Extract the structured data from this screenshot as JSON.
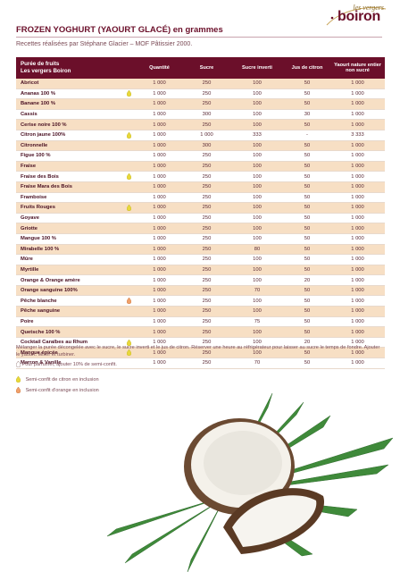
{
  "brand": {
    "top_text": "les vergers",
    "name": "boiron"
  },
  "title": "FROZEN YOGHURT (YAOURT GLACÉ) en grammes",
  "subtitle": "Recettes réalisées par Stéphane Glacier – MOF Pâtissier 2000.",
  "table": {
    "header_fruit_line1": "Purée de fruits",
    "header_fruit_line2": "Les vergers Boiron",
    "columns": [
      "Quantité",
      "Sucre",
      "Sucre inverti",
      "Jus de citron",
      "Yaourt nature entier non sucré"
    ],
    "rows": [
      {
        "fruit": "Abricot",
        "mark": "",
        "values": [
          "1 000",
          "250",
          "100",
          "50",
          "1 000"
        ]
      },
      {
        "fruit": "Ananas 100 %",
        "mark": "lemon",
        "values": [
          "1 000",
          "250",
          "100",
          "50",
          "1 000"
        ]
      },
      {
        "fruit": "Banane 100 %",
        "mark": "",
        "values": [
          "1 000",
          "250",
          "100",
          "50",
          "1 000"
        ]
      },
      {
        "fruit": "Cassis",
        "mark": "",
        "values": [
          "1 000",
          "300",
          "100",
          "30",
          "1 000"
        ]
      },
      {
        "fruit": "Cerise noire 100 %",
        "mark": "",
        "values": [
          "1 000",
          "250",
          "100",
          "50",
          "1 000"
        ]
      },
      {
        "fruit": "Citron jaune 100%",
        "mark": "lemon",
        "values": [
          "1 000",
          "1 000",
          "333",
          "-",
          "3 333"
        ]
      },
      {
        "fruit": "Citronnelle",
        "mark": "",
        "values": [
          "1 000",
          "300",
          "100",
          "50",
          "1 000"
        ]
      },
      {
        "fruit": "Figue 100 %",
        "mark": "",
        "values": [
          "1 000",
          "250",
          "100",
          "50",
          "1 000"
        ]
      },
      {
        "fruit": "Fraise",
        "mark": "",
        "values": [
          "1 000",
          "250",
          "100",
          "50",
          "1 000"
        ]
      },
      {
        "fruit": "Fraise des Bois",
        "mark": "lemon",
        "values": [
          "1 000",
          "250",
          "100",
          "50",
          "1 000"
        ]
      },
      {
        "fruit": "Fraise Mara des Bois",
        "mark": "",
        "values": [
          "1 000",
          "250",
          "100",
          "50",
          "1 000"
        ]
      },
      {
        "fruit": "Framboise",
        "mark": "",
        "values": [
          "1 000",
          "250",
          "100",
          "50",
          "1 000"
        ]
      },
      {
        "fruit": "Fruits Rouges",
        "mark": "lemon",
        "values": [
          "1 000",
          "250",
          "100",
          "50",
          "1 000"
        ]
      },
      {
        "fruit": "Goyave",
        "mark": "",
        "values": [
          "1 000",
          "250",
          "100",
          "50",
          "1 000"
        ]
      },
      {
        "fruit": "Griotte",
        "mark": "",
        "values": [
          "1 000",
          "250",
          "100",
          "50",
          "1 000"
        ]
      },
      {
        "fruit": "Mangue 100 %",
        "mark": "",
        "values": [
          "1 000",
          "250",
          "100",
          "50",
          "1 000"
        ]
      },
      {
        "fruit": "Mirabelle 100 %",
        "mark": "",
        "values": [
          "1 000",
          "250",
          "80",
          "50",
          "1 000"
        ]
      },
      {
        "fruit": "Mûre",
        "mark": "",
        "values": [
          "1 000",
          "250",
          "100",
          "50",
          "1 000"
        ]
      },
      {
        "fruit": "Myrtille",
        "mark": "",
        "values": [
          "1 000",
          "250",
          "100",
          "50",
          "1 000"
        ]
      },
      {
        "fruit": "Orange & Orange amère",
        "mark": "",
        "values": [
          "1 000",
          "250",
          "100",
          "20",
          "1 000"
        ]
      },
      {
        "fruit": "Orange sanguine 100%",
        "mark": "",
        "values": [
          "1 000",
          "250",
          "70",
          "50",
          "1 000"
        ]
      },
      {
        "fruit": "Pêche blanche",
        "mark": "orange",
        "values": [
          "1 000",
          "250",
          "100",
          "50",
          "1 000"
        ]
      },
      {
        "fruit": "Pêche sanguine",
        "mark": "",
        "values": [
          "1 000",
          "250",
          "100",
          "50",
          "1 000"
        ]
      },
      {
        "fruit": "Poire",
        "mark": "",
        "values": [
          "1 000",
          "250",
          "75",
          "50",
          "1 000"
        ]
      },
      {
        "fruit": "Quetsche 100 %",
        "mark": "",
        "values": [
          "1 000",
          "250",
          "100",
          "50",
          "1 000"
        ]
      },
      {
        "fruit": "Cocktail Caraïbes au Rhum",
        "mark": "lemon",
        "values": [
          "1 000",
          "250",
          "100",
          "20",
          "1 000"
        ]
      },
      {
        "fruit": "Mangue épicée",
        "mark": "lemon",
        "values": [
          "1 000",
          "250",
          "100",
          "50",
          "1 000"
        ]
      },
      {
        "fruit": "Marron & Vanille",
        "mark": "",
        "values": [
          "1 000",
          "250",
          "70",
          "50",
          "1 000"
        ]
      }
    ]
  },
  "notes": {
    "method": "Mélanger la purée décongelée avec le sucre, le sucre inverti et le jus de citron. Réserver une heure au réfrigérateur pour laisser au sucre le temps de fondre. Ajouter le yaourt. Mixer et turbiner.",
    "perfume": "Pour parfumer, ajouter 10% de semi-confit."
  },
  "legend": {
    "lemon": "Semi-confit de citron en inclusion",
    "orange": "Semi-confit d'orange en inclusion"
  },
  "colors": {
    "header_bg": "#6b0f2a",
    "row_alt_bg": "#f7dfc4",
    "lemon_drop": "#e8d83a",
    "orange_drop": "#f0a06a"
  }
}
